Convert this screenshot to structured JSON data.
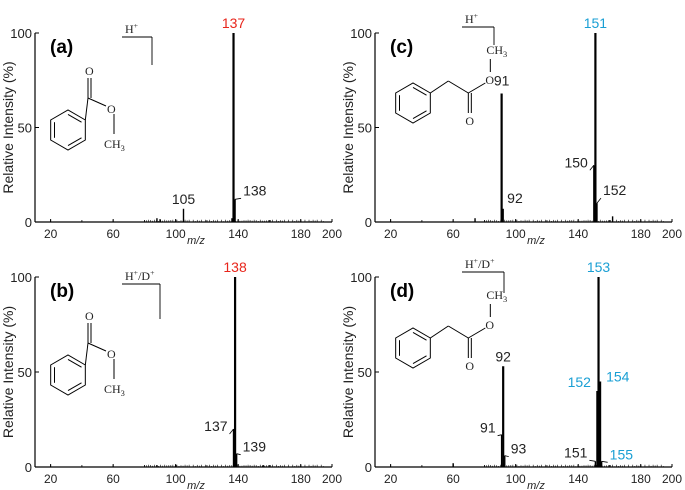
{
  "chart_data": [
    {
      "type": "bar",
      "panel_label": "(a)",
      "ylabel": "Relative Intensity (%)",
      "xlabel": "m/z",
      "xlim": [
        10,
        200
      ],
      "ylim": [
        0,
        100
      ],
      "xticks": [
        "20",
        "60",
        "100",
        "140",
        "180",
        "200"
      ],
      "yticks": [
        "0",
        "50",
        "100"
      ],
      "ion_label": "H+",
      "structure": {
        "carbonyl_o": "O",
        "ester_o": "O",
        "methyl": "CH3"
      },
      "peaks": [
        {
          "mz": 88,
          "intensity": 2
        },
        {
          "mz": 90,
          "intensity": 1.5
        },
        {
          "mz": 105,
          "intensity": 7,
          "label": "105"
        },
        {
          "mz": 136,
          "intensity": 2
        },
        {
          "mz": 137,
          "intensity": 100,
          "label": "137",
          "highlight": true
        },
        {
          "mz": 138,
          "intensity": 12,
          "label": "138"
        }
      ]
    },
    {
      "type": "bar",
      "panel_label": "(b)",
      "ylabel": "Relative Intensity (%)",
      "xlabel": "m/z",
      "xlim": [
        10,
        200
      ],
      "ylim": [
        0,
        100
      ],
      "xticks": [
        "20",
        "60",
        "100",
        "140",
        "180",
        "200"
      ],
      "yticks": [
        "0",
        "50",
        "100"
      ],
      "ion_label": "H+/D+",
      "structure": {
        "carbonyl_o": "O",
        "ester_o": "O",
        "methyl": "CH3"
      },
      "peaks": [
        {
          "mz": 88,
          "intensity": 1
        },
        {
          "mz": 100,
          "intensity": 1
        },
        {
          "mz": 137,
          "intensity": 20,
          "label": "137"
        },
        {
          "mz": 138,
          "intensity": 100,
          "label": "138",
          "highlight": true
        },
        {
          "mz": 139,
          "intensity": 7,
          "label": "139"
        },
        {
          "mz": 156,
          "intensity": 1
        }
      ]
    },
    {
      "type": "bar",
      "panel_label": "(c)",
      "ylabel": "Relative Intensity (%)",
      "xlabel": "m/z",
      "xlim": [
        10,
        200
      ],
      "ylim": [
        0,
        100
      ],
      "xticks": [
        "20",
        "60",
        "100",
        "140",
        "180",
        "200"
      ],
      "yticks": [
        "0",
        "50",
        "100"
      ],
      "ion_label": "H+",
      "structure": {
        "carbonyl_o": "O",
        "ester_o": "O",
        "methyl": "CH3"
      },
      "peaks": [
        {
          "mz": 74,
          "intensity": 2
        },
        {
          "mz": 91,
          "intensity": 68,
          "label": "91"
        },
        {
          "mz": 92,
          "intensity": 7,
          "label": "92"
        },
        {
          "mz": 150,
          "intensity": 30,
          "label": "150"
        },
        {
          "mz": 151,
          "intensity": 100,
          "label": "151",
          "highlight": true
        },
        {
          "mz": 152,
          "intensity": 10,
          "label": "152"
        },
        {
          "mz": 162,
          "intensity": 3
        }
      ]
    },
    {
      "type": "bar",
      "panel_label": "(d)",
      "ylabel": "Relative Intensity (%)",
      "xlabel": "m/z",
      "xlim": [
        10,
        200
      ],
      "ylim": [
        0,
        100
      ],
      "xticks": [
        "20",
        "60",
        "100",
        "140",
        "180",
        "200"
      ],
      "yticks": [
        "0",
        "50",
        "100"
      ],
      "ion_label": "H+/D+",
      "structure": {
        "carbonyl_o": "O",
        "ester_o": "O",
        "methyl": "CH3"
      },
      "peaks": [
        {
          "mz": 60,
          "intensity": 2
        },
        {
          "mz": 91,
          "intensity": 17,
          "label": "91"
        },
        {
          "mz": 92,
          "intensity": 53,
          "label": "92"
        },
        {
          "mz": 93,
          "intensity": 6,
          "label": "93"
        },
        {
          "mz": 151,
          "intensity": 3,
          "label": "151"
        },
        {
          "mz": 152,
          "intensity": 40,
          "label": "152",
          "highlight": true
        },
        {
          "mz": 153,
          "intensity": 100,
          "label": "153",
          "highlight": true
        },
        {
          "mz": 154,
          "intensity": 45,
          "label": "154",
          "highlight": true
        },
        {
          "mz": 155,
          "intensity": 3,
          "label": "155",
          "highlight": true
        }
      ]
    }
  ],
  "colors": {
    "axis": "#000000",
    "red_label": "#e8251b",
    "blue_label": "#1a9fd4",
    "text": "#222222"
  }
}
